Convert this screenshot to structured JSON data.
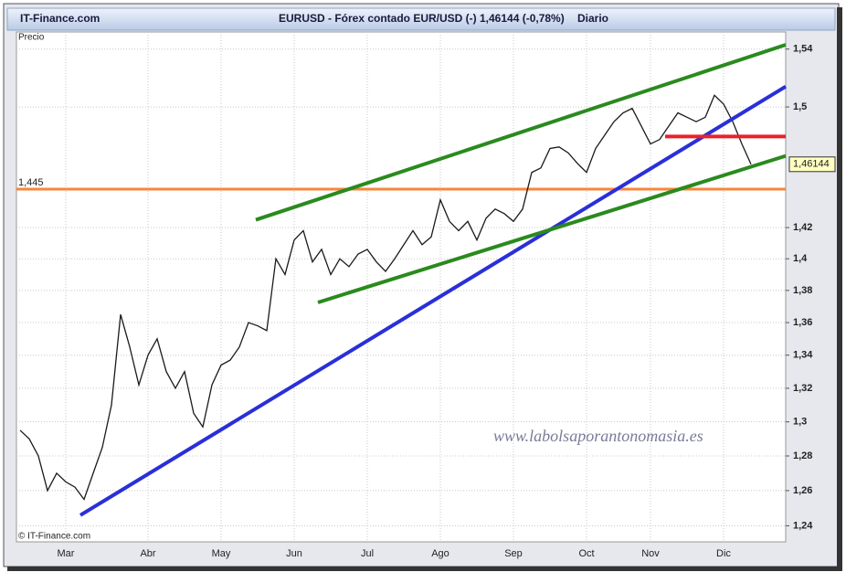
{
  "chart_data": {
    "type": "line",
    "source": "IT-Finance.com",
    "title": "EURUSD - Fórex contado EUR/USD (-)",
    "subtitle": "1,46144 (-0,78%)",
    "period": "Diario",
    "copyright": "© IT-Finance.com",
    "watermark": "www.labolsaporantonomasia.es",
    "categories": [
      null,
      null,
      null,
      null,
      null,
      "Mar",
      null,
      null,
      null,
      null,
      null,
      null,
      null,
      null,
      "Abr",
      null,
      null,
      null,
      null,
      null,
      null,
      null,
      "May",
      null,
      null,
      null,
      null,
      null,
      null,
      null,
      "Jun",
      null,
      null,
      null,
      null,
      null,
      null,
      null,
      "Jul",
      null,
      null,
      null,
      null,
      null,
      null,
      null,
      "Ago",
      null,
      null,
      null,
      null,
      null,
      null,
      null,
      "Sep",
      null,
      null,
      null,
      null,
      null,
      null,
      null,
      "Oct",
      null,
      null,
      null,
      null,
      null,
      null,
      "Nov",
      null,
      null,
      null,
      null,
      null,
      null,
      null,
      "Dic",
      null,
      null,
      null
    ],
    "series": [
      {
        "name": "Precio",
        "color": "#1a1a1a",
        "values": [
          1.295,
          1.29,
          1.28,
          1.26,
          1.27,
          1.265,
          1.262,
          1.255,
          1.27,
          1.285,
          1.31,
          1.365,
          1.345,
          1.322,
          1.34,
          1.35,
          1.33,
          1.32,
          1.33,
          1.305,
          1.297,
          1.322,
          1.334,
          1.337,
          1.345,
          1.36,
          1.358,
          1.355,
          1.4,
          1.39,
          1.412,
          1.418,
          1.398,
          1.406,
          1.39,
          1.4,
          1.395,
          1.403,
          1.406,
          1.398,
          1.392,
          1.4,
          1.409,
          1.418,
          1.409,
          1.414,
          1.438,
          1.424,
          1.418,
          1.424,
          1.412,
          1.426,
          1.432,
          1.429,
          1.424,
          1.432,
          1.456,
          1.459,
          1.472,
          1.473,
          1.469,
          1.462,
          1.456,
          1.472,
          1.481,
          1.49,
          1.496,
          1.499,
          1.487,
          1.475,
          1.478,
          1.487,
          1.496,
          1.493,
          1.49,
          1.493,
          1.508,
          1.502,
          1.49,
          1.475,
          1.46144
        ]
      }
    ],
    "last_value": {
      "value": 1.46144,
      "label": "1,46144"
    },
    "ylim": [
      1.231,
      1.552
    ],
    "log_scale": true,
    "yticks": [
      {
        "value": 1.24,
        "label": "1,24"
      },
      {
        "value": 1.26,
        "label": "1,26"
      },
      {
        "value": 1.28,
        "label": "1,28"
      },
      {
        "value": 1.3,
        "label": "1,3"
      },
      {
        "value": 1.32,
        "label": "1,32"
      },
      {
        "value": 1.34,
        "label": "1,34"
      },
      {
        "value": 1.36,
        "label": "1,36"
      },
      {
        "value": 1.38,
        "label": "1,38"
      },
      {
        "value": 1.4,
        "label": "1,4"
      },
      {
        "value": 1.42,
        "label": "1,42"
      },
      {
        "value": 1.5,
        "label": "1,5"
      },
      {
        "value": 1.54,
        "label": "1,54"
      }
    ],
    "grid": true,
    "hlines": [
      {
        "value": 1.445,
        "label": "1,445",
        "color": "#f7853b"
      }
    ],
    "trendlines": [
      {
        "color": "#2a2fd8",
        "start": [
          6.6,
          1.246
        ],
        "end": [
          83.8,
          1.514
        ]
      },
      {
        "color": "#2a8a1e",
        "start": [
          25.8,
          1.425
        ],
        "end": [
          83.8,
          1.543
        ]
      },
      {
        "color": "#2a8a1e",
        "start": [
          32.6,
          1.3725
        ],
        "end": [
          83.8,
          1.467
        ]
      },
      {
        "color": "#e8212a",
        "start": [
          70.6,
          1.48
        ],
        "end": [
          83.8,
          1.48
        ]
      }
    ]
  }
}
